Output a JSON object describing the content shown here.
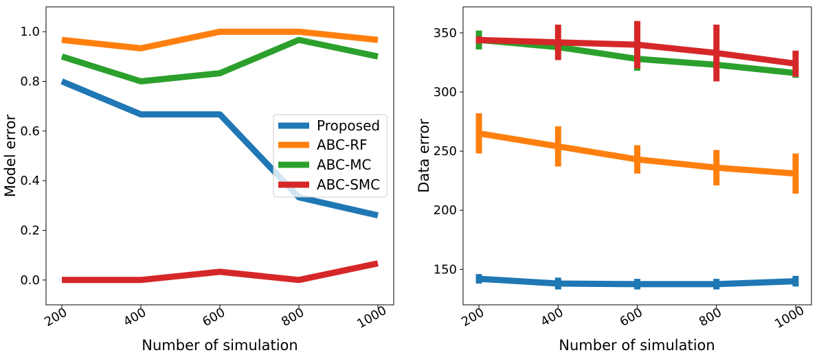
{
  "chart_data": [
    {
      "type": "line",
      "xlabel": "Number of simulation",
      "ylabel": "Model error",
      "categories": [
        "200",
        "400",
        "600",
        "800",
        "1000"
      ],
      "xlim": [
        -0.2,
        4.2
      ],
      "ylim": [
        -0.1,
        1.1
      ],
      "yticks": [
        0.0,
        0.2,
        0.4,
        0.6,
        0.8,
        1.0
      ],
      "ytick_labels": [
        "0.0",
        "0.2",
        "0.4",
        "0.6",
        "0.8",
        "1.0"
      ],
      "legend_position": "center-right",
      "grid": false,
      "series": [
        {
          "name": "Proposed",
          "color": "#1f77b4",
          "values": [
            0.8,
            0.667,
            0.667,
            0.333,
            0.26
          ]
        },
        {
          "name": "ABC-RF",
          "color": "#ff7f0e",
          "values": [
            0.967,
            0.933,
            1.0,
            1.0,
            0.967
          ]
        },
        {
          "name": "ABC-MC",
          "color": "#2ca02c",
          "values": [
            0.9,
            0.8,
            0.833,
            0.967,
            0.9
          ]
        },
        {
          "name": "ABC-SMC",
          "color": "#d62728",
          "values": [
            0.0,
            0.0,
            0.033,
            0.0,
            0.067
          ]
        }
      ]
    },
    {
      "type": "line",
      "xlabel": "Number of simulation",
      "ylabel": "Data error",
      "categories": [
        "200",
        "400",
        "600",
        "800",
        "1000"
      ],
      "xlim": [
        -0.2,
        4.2
      ],
      "ylim": [
        120,
        372
      ],
      "yticks": [
        150,
        200,
        250,
        300,
        350
      ],
      "ytick_labels": [
        "150",
        "200",
        "250",
        "300",
        "350"
      ],
      "grid": false,
      "error_bars": true,
      "series": [
        {
          "color": "#1f77b4",
          "values": [
            142,
            138,
            137.5,
            137.5,
            140
          ],
          "errors": [
            4,
            5,
            4.5,
            4.5,
            4.5
          ]
        },
        {
          "color": "#ff7f0e",
          "values": [
            265,
            254,
            243,
            236,
            231
          ],
          "errors": [
            17,
            17,
            12,
            15,
            17
          ]
        },
        {
          "color": "#2ca02c",
          "values": [
            344,
            338,
            328,
            323,
            316
          ],
          "errors": [
            8,
            0,
            10,
            0,
            4
          ]
        },
        {
          "color": "#d62728",
          "values": [
            344,
            342,
            340,
            333,
            324
          ],
          "errors": [
            3,
            15,
            20,
            24,
            11
          ]
        }
      ]
    }
  ]
}
